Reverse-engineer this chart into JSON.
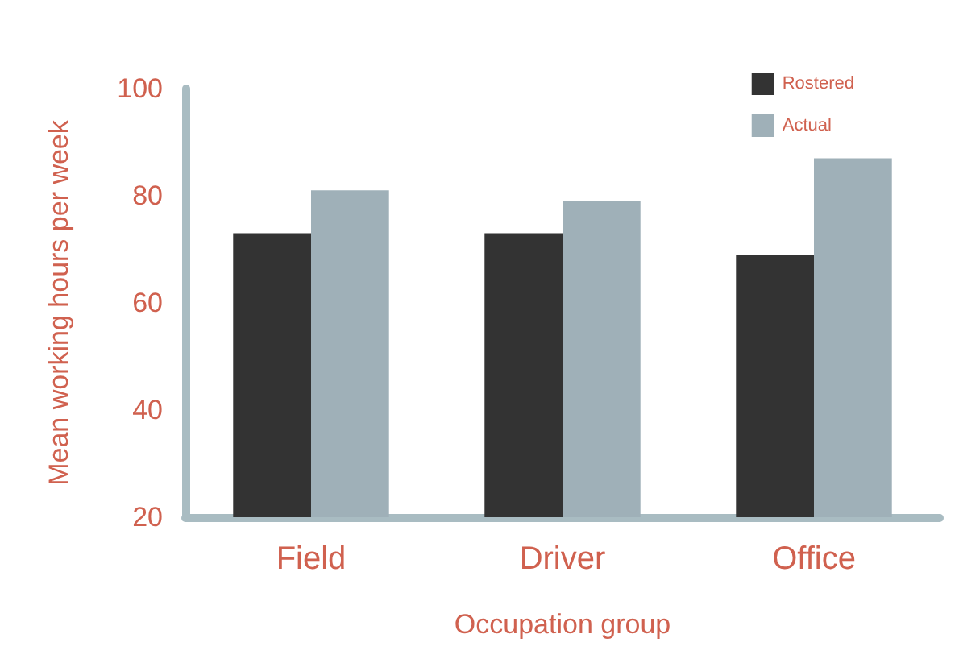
{
  "chart_data": {
    "type": "bar",
    "xlabel": "Occupation group",
    "ylabel": "Mean working hours per week",
    "categories": [
      "Field",
      "Driver",
      "Office"
    ],
    "series": [
      {
        "name": "Rostered",
        "color": "#333333",
        "values": [
          73,
          73,
          69
        ]
      },
      {
        "name": "Actual",
        "color": "#9fb0b8",
        "values": [
          81,
          79,
          87
        ]
      }
    ],
    "ylim": [
      20,
      100
    ],
    "yticks": [
      20,
      40,
      60,
      80,
      100
    ],
    "grid": false,
    "legend": "top right"
  }
}
